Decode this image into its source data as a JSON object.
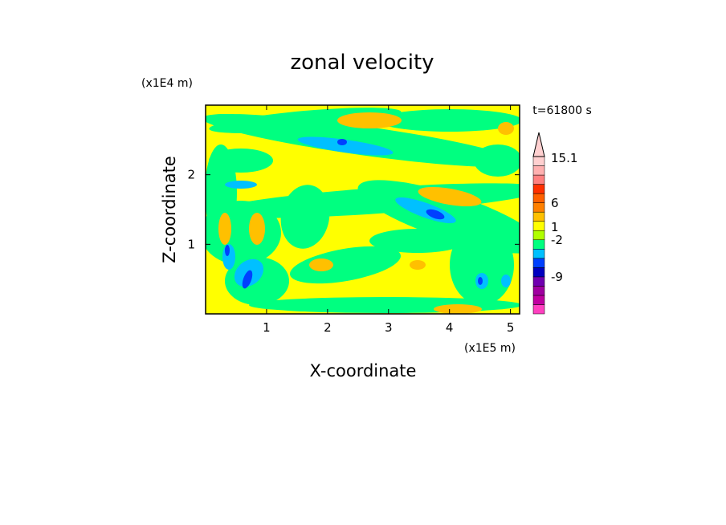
{
  "chart_data": {
    "type": "heatmap",
    "title": "zonal velocity",
    "xlabel": "X-coordinate",
    "ylabel": "Z-coordinate",
    "x_multiplier": "(x1E5 m)",
    "y_multiplier": "(x1E4 m)",
    "time_label": "t=61800 s",
    "xlim": [
      0,
      5.15
    ],
    "ylim": [
      0,
      3.0
    ],
    "x_ticks": [
      1,
      2,
      3,
      4,
      5
    ],
    "y_ticks": [
      1,
      2
    ],
    "colorbar": {
      "tick_labels": [
        "15.1",
        "6",
        "1",
        "-2",
        "-9"
      ],
      "colors": [
        "#ff40c0",
        "#c000a0",
        "#a000a0",
        "#7000b0",
        "#0000c0",
        "#0040ff",
        "#00c0ff",
        "#00ff80",
        "#b0ff00",
        "#ffff00",
        "#ffc000",
        "#ff8000",
        "#ff6000",
        "#ff3000",
        "#ff8080",
        "#ffb0b0",
        "#ffd0d0"
      ]
    }
  }
}
